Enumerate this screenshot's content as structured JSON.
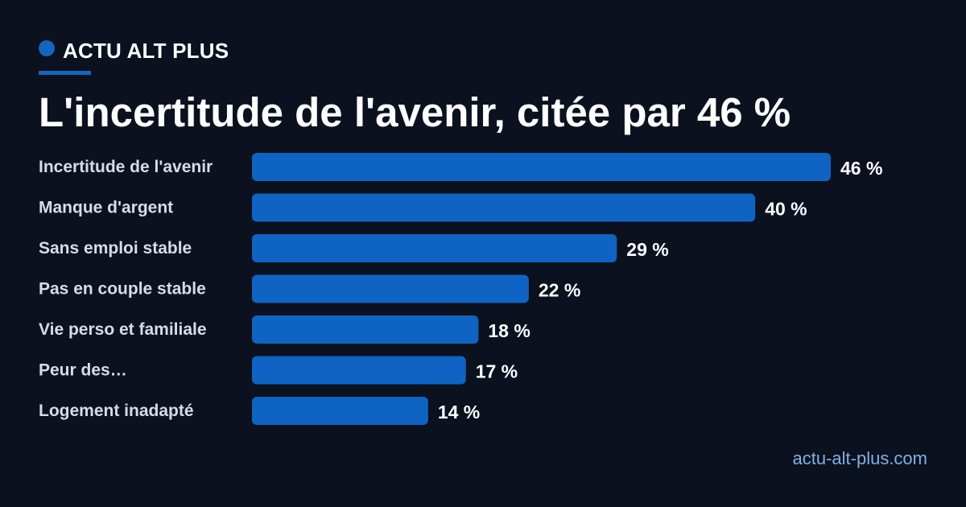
{
  "brand": {
    "name": "ACTU ALT PLUS",
    "icon": "dot-icon",
    "accent_color": "#1565c0"
  },
  "title": "L'incertitude de l'avenir, citée par 46 %",
  "footer": {
    "url": "actu-alt-plus.com"
  },
  "colors": {
    "background": "#0b111e",
    "bar": "#0f63c2",
    "category_label": "#d5dde8",
    "value_label": "#ffffff",
    "footer": "#7fb1e6"
  },
  "chart_data": {
    "type": "bar",
    "orientation": "horizontal",
    "categories": [
      "Incertitude de l'avenir",
      "Manque d'argent",
      "Sans emploi stable",
      "Pas en couple stable",
      "Vie perso et familiale",
      "Peur des…",
      "Logement inadapté"
    ],
    "values": [
      46,
      40,
      29,
      22,
      18,
      17,
      14
    ],
    "value_labels": [
      "46 %",
      "40 %",
      "29 %",
      "22 %",
      "18 %",
      "17 %",
      "14 %"
    ],
    "unit": "%",
    "xlim": [
      0,
      46
    ],
    "grid": false,
    "legend": "none"
  }
}
